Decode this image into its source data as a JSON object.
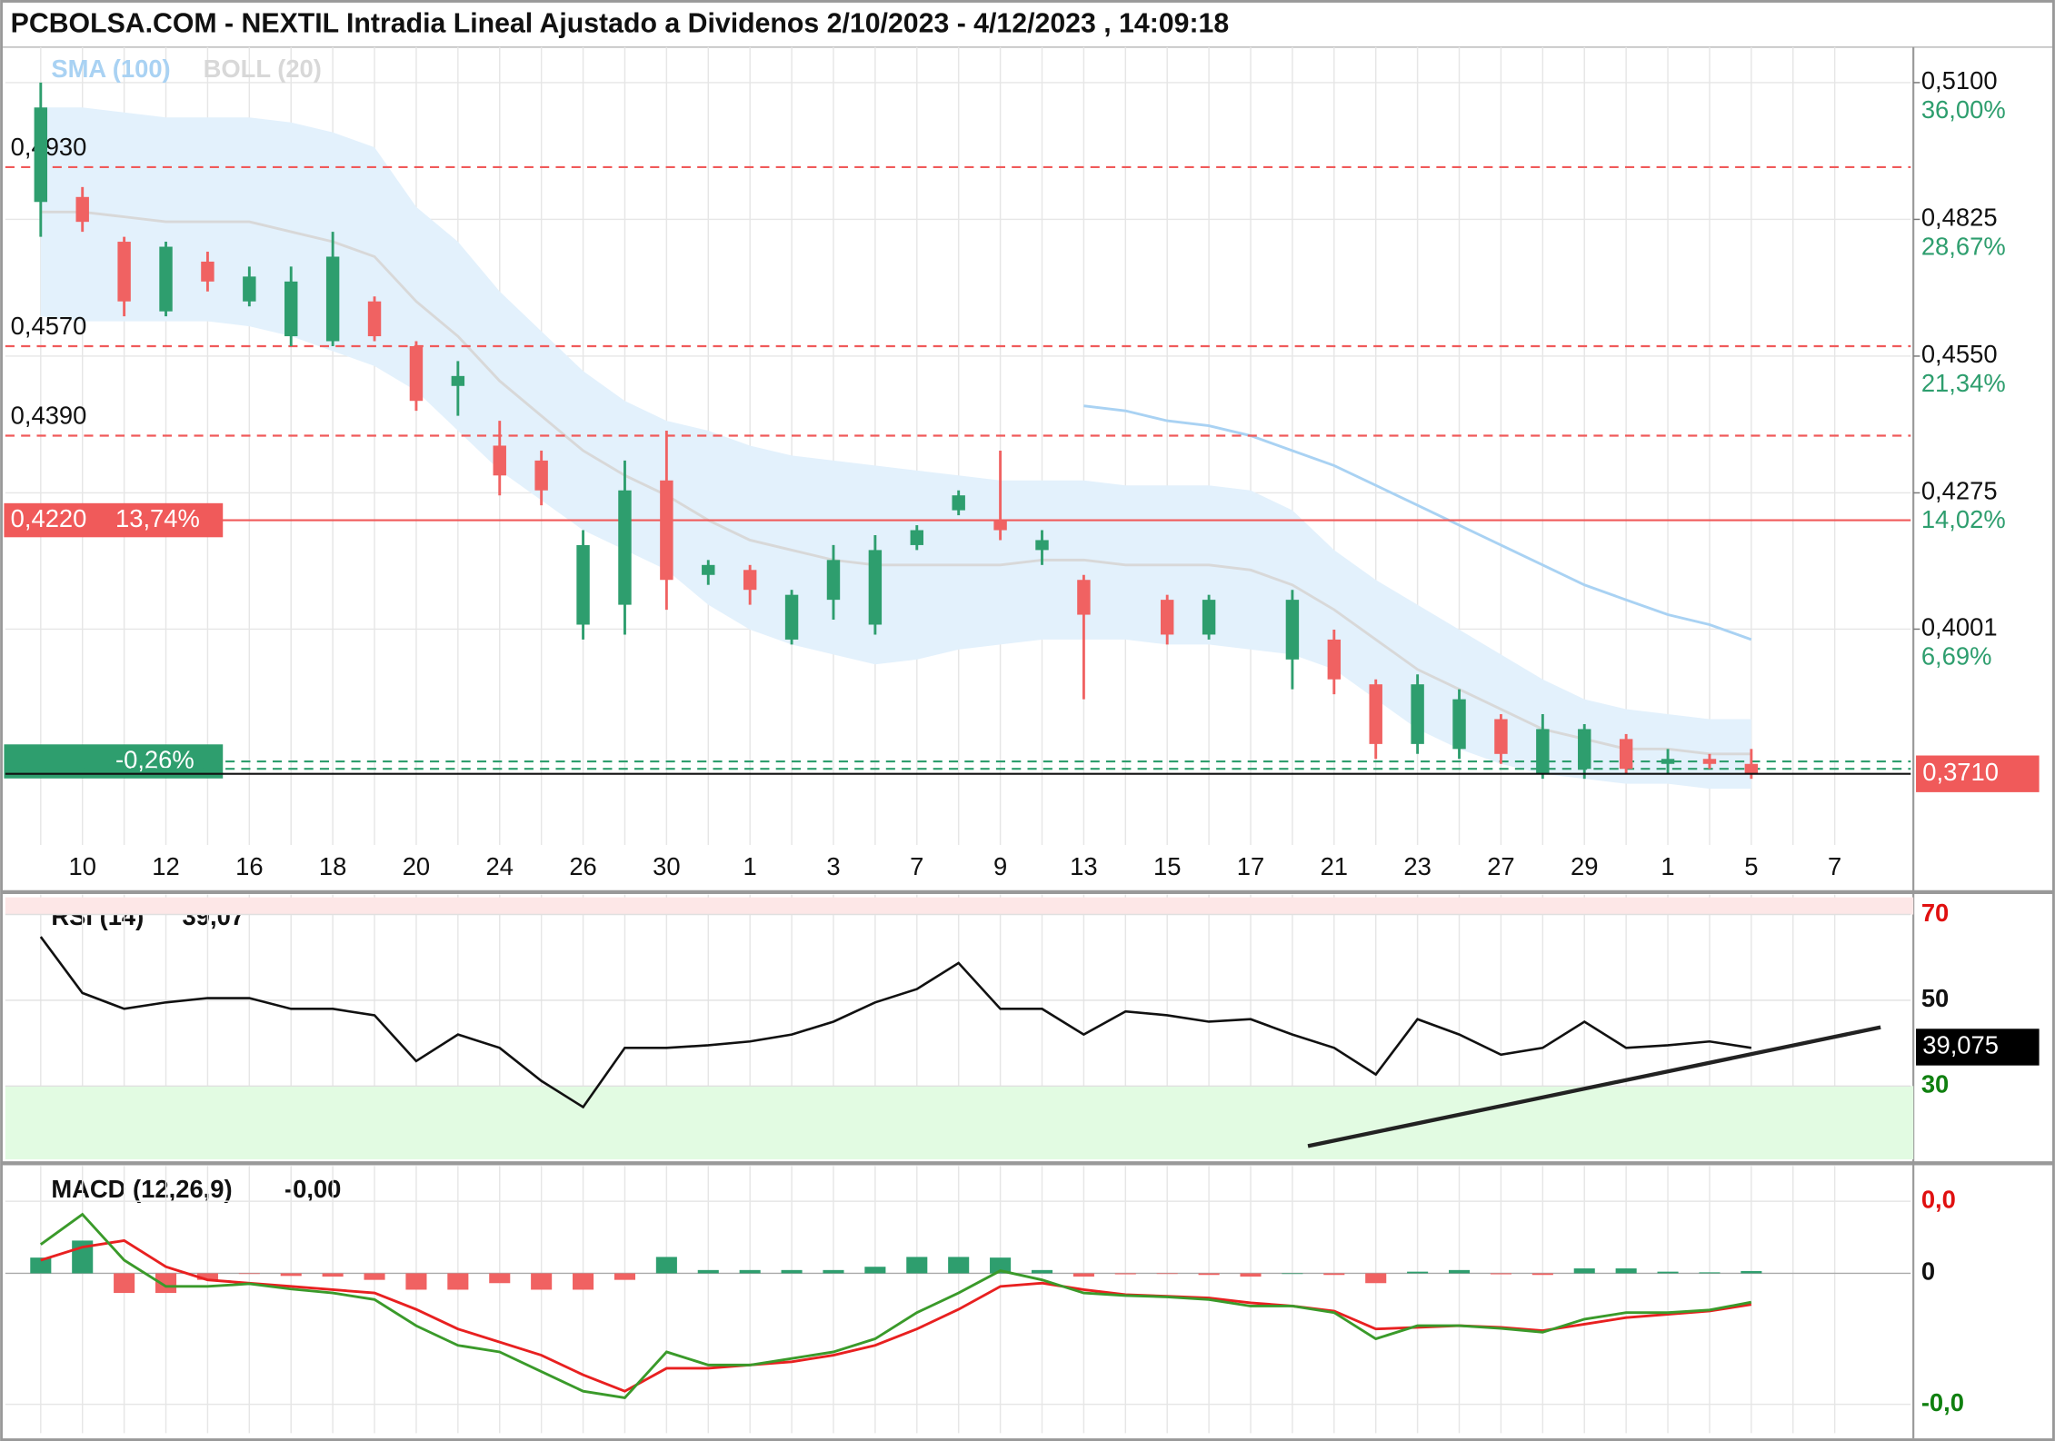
{
  "chart_data": [
    {
      "type": "candlestick",
      "title": "PCBOLSA.COM - NEXTIL Intradia Lineal Ajustado a Dividenos 2/10/2023 - 4/12/2023 , 14:09:18",
      "categories": [
        null,
        "10",
        null,
        "12",
        null,
        "16",
        null,
        "18",
        null,
        "20",
        null,
        "24",
        null,
        "26",
        null,
        "30",
        null,
        "1",
        null,
        "3",
        null,
        "7",
        null,
        "9",
        null,
        "13",
        null,
        "15",
        null,
        "17",
        null,
        "21",
        null,
        "23",
        null,
        "27",
        null,
        "29",
        null,
        "1",
        null,
        "5",
        null,
        "7"
      ],
      "open": [
        0.486,
        0.487,
        0.478,
        0.464,
        0.474,
        0.466,
        0.459,
        0.458,
        0.466,
        0.457,
        0.449,
        0.437,
        0.434,
        0.401,
        0.405,
        0.43,
        0.411,
        0.412,
        0.398,
        0.406,
        0.401,
        0.417,
        0.424,
        0.422,
        0.416,
        0.41,
        null,
        0.406,
        0.399,
        null,
        0.394,
        0.398,
        0.389,
        0.377,
        0.376,
        0.382,
        0.371,
        0.372,
        0.378,
        0.373,
        0.374,
        0.373,
        null,
        null
      ],
      "high": [
        0.51,
        0.489,
        0.479,
        0.478,
        0.476,
        0.473,
        0.473,
        0.48,
        0.467,
        0.458,
        0.454,
        0.442,
        0.436,
        0.42,
        0.434,
        0.44,
        0.414,
        0.413,
        0.408,
        0.417,
        0.419,
        0.421,
        0.428,
        0.436,
        0.42,
        0.411,
        null,
        0.407,
        0.407,
        null,
        0.408,
        0.4,
        0.39,
        0.391,
        0.388,
        0.383,
        0.383,
        0.381,
        0.379,
        0.376,
        0.375,
        0.376,
        null,
        null
      ],
      "low": [
        0.479,
        0.48,
        0.463,
        0.463,
        0.468,
        0.465,
        0.457,
        0.457,
        0.458,
        0.444,
        0.443,
        0.427,
        0.425,
        0.398,
        0.399,
        0.404,
        0.409,
        0.405,
        0.397,
        0.402,
        0.399,
        0.416,
        0.423,
        0.418,
        0.413,
        0.386,
        null,
        0.397,
        0.398,
        null,
        0.388,
        0.387,
        0.374,
        0.375,
        0.374,
        0.373,
        0.37,
        0.37,
        0.371,
        0.371,
        0.372,
        0.37,
        null,
        null
      ],
      "close": [
        0.505,
        0.482,
        0.466,
        0.477,
        0.47,
        0.471,
        0.47,
        0.475,
        0.459,
        0.446,
        0.451,
        0.431,
        0.428,
        0.417,
        0.428,
        0.41,
        0.413,
        0.408,
        0.407,
        0.414,
        0.416,
        0.42,
        0.427,
        0.42,
        0.418,
        0.403,
        null,
        0.399,
        0.406,
        null,
        0.406,
        0.39,
        0.377,
        0.389,
        0.386,
        0.375,
        0.38,
        0.38,
        0.372,
        0.374,
        0.373,
        0.371,
        null,
        null
      ],
      "up_color": "#2e9e6e",
      "down_color": "#f06262",
      "indicators": [
        {
          "name": "SMA (100)",
          "color": "#a9d2f3",
          "values": [
            null,
            null,
            null,
            null,
            null,
            null,
            null,
            null,
            null,
            null,
            null,
            null,
            null,
            null,
            null,
            null,
            null,
            null,
            null,
            null,
            null,
            null,
            null,
            null,
            null,
            0.445,
            0.444,
            0.442,
            0.441,
            0.439,
            0.436,
            0.433,
            0.429,
            0.425,
            0.421,
            0.417,
            0.413,
            0.409,
            0.406,
            0.403,
            0.401,
            0.398,
            null,
            null
          ]
        },
        {
          "name": "BOLL (20)",
          "color": "#d8d8d8",
          "band_color": "#e3f1fc",
          "upper": [
            0.505,
            0.505,
            0.504,
            0.503,
            0.503,
            0.503,
            0.502,
            0.5,
            0.497,
            0.485,
            0.478,
            0.468,
            0.46,
            0.452,
            0.446,
            0.442,
            0.44,
            0.437,
            0.435,
            0.434,
            0.433,
            0.432,
            0.431,
            0.43,
            0.43,
            0.43,
            0.429,
            0.429,
            0.429,
            0.428,
            0.424,
            0.416,
            0.41,
            0.405,
            0.4,
            0.395,
            0.39,
            0.386,
            0.384,
            0.383,
            0.382,
            0.382,
            null,
            null
          ],
          "middle": [
            0.484,
            0.484,
            0.483,
            0.482,
            0.482,
            0.482,
            0.48,
            0.478,
            0.475,
            0.466,
            0.459,
            0.45,
            0.443,
            0.436,
            0.431,
            0.427,
            0.422,
            0.418,
            0.416,
            0.414,
            0.413,
            0.413,
            0.413,
            0.413,
            0.414,
            0.414,
            0.413,
            0.413,
            0.413,
            0.412,
            0.409,
            0.404,
            0.398,
            0.392,
            0.388,
            0.384,
            0.38,
            0.378,
            0.376,
            0.376,
            0.375,
            0.375,
            null,
            null
          ],
          "lower": [
            0.463,
            0.462,
            0.462,
            0.462,
            0.462,
            0.461,
            0.459,
            0.456,
            0.453,
            0.448,
            0.44,
            0.432,
            0.426,
            0.42,
            0.416,
            0.412,
            0.405,
            0.4,
            0.397,
            0.395,
            0.393,
            0.394,
            0.396,
            0.397,
            0.398,
            0.398,
            0.398,
            0.397,
            0.397,
            0.396,
            0.395,
            0.392,
            0.386,
            0.38,
            0.376,
            0.373,
            0.371,
            0.37,
            0.369,
            0.369,
            0.368,
            0.368,
            null,
            null
          ]
        }
      ],
      "levels": [
        {
          "value": 0.493,
          "label": "0,4930",
          "color": "#f05a5a",
          "dash": true
        },
        {
          "value": 0.457,
          "label": "0,4570",
          "color": "#f05a5a",
          "dash": true
        },
        {
          "value": 0.439,
          "label": "0,4390",
          "color": "#f05a5a",
          "dash": true
        },
        {
          "value": 0.422,
          "label": "0,4220",
          "pct": "13,74%",
          "color": "#f05a5a",
          "dash": false
        },
        {
          "value": 0.3735,
          "pct": "-0,26%",
          "color": "#2e9e6e",
          "dash": true
        },
        {
          "value": 0.372,
          "color": "#2e9e6e",
          "dash": true
        }
      ],
      "last": {
        "value": 0.371,
        "label": "0,3710",
        "color": "#f05a5a"
      },
      "ylim": [
        0.3567,
        0.5166
      ],
      "yticks": [
        {
          "value": 0.51,
          "label": "0,5100"
        },
        {
          "value": 0.4825,
          "label": "0,4825"
        },
        {
          "value": 0.455,
          "label": "0,4550"
        },
        {
          "value": 0.4275,
          "label": "0,4275"
        },
        {
          "value": 0.4001,
          "label": "0,4001"
        }
      ],
      "y2lim": [
        -4.88,
        37.76
      ],
      "y2ticks": [
        {
          "value": 36,
          "label": "36,00%"
        },
        {
          "value": 28.67,
          "label": "28,67%"
        },
        {
          "value": 21.34,
          "label": "21,34%"
        },
        {
          "value": 14.02,
          "label": "14,02%"
        },
        {
          "value": 6.69,
          "label": "6,69%"
        }
      ],
      "y2color": "#2e9e6e",
      "grid": true
    },
    {
      "type": "line",
      "title": "RSI (14)",
      "header_value": "39,07",
      "color": "#111111",
      "values": [
        64.8,
        51.7,
        48,
        49.5,
        50.5,
        50.5,
        48,
        48,
        46.5,
        35.8,
        42,
        38.9,
        31.2,
        25.1,
        38.9,
        38.9,
        39.5,
        40.4,
        42,
        45,
        49.5,
        52.6,
        58.7,
        48,
        48,
        42,
        47.4,
        46.5,
        45,
        45.6,
        42,
        38.9,
        32.7,
        45.6,
        42,
        37.3,
        38.9,
        45,
        38.9,
        39.5,
        40.4,
        38.9,
        null,
        null
      ],
      "last": {
        "value": 39.075,
        "label": "39,075"
      },
      "trendline": [
        16,
        43.7
      ],
      "overbought": 70,
      "oversold": 30,
      "ylim": [
        12.9,
        74
      ],
      "yticks": [
        70,
        50,
        30
      ],
      "tick_colors": [
        "#e01010",
        "#111111",
        "#108010"
      ],
      "grid": true
    },
    {
      "type": "macd",
      "title": "MACD (12,26,9)",
      "header_value": "-0,00",
      "macd": {
        "color": "#3a9a2a",
        "values": [
          0.00176,
          0.0036,
          0.0008,
          -0.0008,
          -0.0008,
          -0.00064,
          -0.00096,
          -0.0012,
          -0.0016,
          -0.0032,
          -0.0044,
          -0.0048,
          -0.006,
          -0.0072,
          -0.0076,
          -0.0048,
          -0.0056,
          -0.0056,
          -0.0052,
          -0.0048,
          -0.004,
          -0.0024,
          -0.0012,
          0.00016,
          -0.0004,
          -0.0012,
          -0.00136,
          -0.00144,
          -0.0016,
          -0.002,
          -0.002,
          -0.0024,
          -0.004,
          -0.0032,
          -0.0032,
          -0.00336,
          -0.0036,
          -0.0028,
          -0.0024,
          -0.0024,
          -0.00224,
          -0.00176,
          null,
          null
        ]
      },
      "signal": {
        "color": "#e82020",
        "values": [
          0.0008,
          0.0016,
          0.002,
          0.0004,
          -0.0004,
          -0.0006,
          -0.0008,
          -0.001,
          -0.0012,
          -0.0022,
          -0.0034,
          -0.0042,
          -0.005,
          -0.0062,
          -0.0072,
          -0.0058,
          -0.0058,
          -0.0056,
          -0.0054,
          -0.005,
          -0.0044,
          -0.0034,
          -0.0022,
          -0.0008,
          -0.0006,
          -0.001,
          -0.0013,
          -0.0014,
          -0.0015,
          -0.0018,
          -0.002,
          -0.0023,
          -0.0034,
          -0.0033,
          -0.0032,
          -0.0033,
          -0.0035,
          -0.0031,
          -0.0027,
          -0.0025,
          -0.0023,
          -0.0019,
          null,
          null
        ]
      },
      "histogram": [
        0.00096,
        0.002,
        -0.0012,
        -0.0012,
        -0.0004,
        -4e-05,
        -0.00016,
        -0.0002,
        -0.0004,
        -0.001,
        -0.001,
        -0.0006,
        -0.001,
        -0.001,
        -0.0004,
        0.001,
        0.0002,
        0.0002,
        0.0002,
        0.0002,
        0.0004,
        0.001,
        0.001,
        0.00096,
        0.0002,
        -0.0002,
        -6e-05,
        -4e-05,
        -0.0001,
        -0.0002,
        0,
        -0.0001,
        -0.0006,
        0.0001,
        0.0002,
        -6e-05,
        -0.0001,
        0.0003,
        0.0003,
        0.0001,
        6e-05,
        0.00014,
        null,
        null
      ],
      "up_color": "#2e9e6e",
      "down_color": "#f06262",
      "ylim": [
        -0.00976,
        0.0064
      ],
      "yticks": [
        {
          "value": 0.0044,
          "label": "0,0"
        },
        {
          "value": 0,
          "label": "0"
        },
        {
          "value": -0.008,
          "label": "-0,0"
        }
      ],
      "tick_colors": [
        "#e01010",
        "#111111",
        "#108010"
      ],
      "grid": true
    }
  ]
}
